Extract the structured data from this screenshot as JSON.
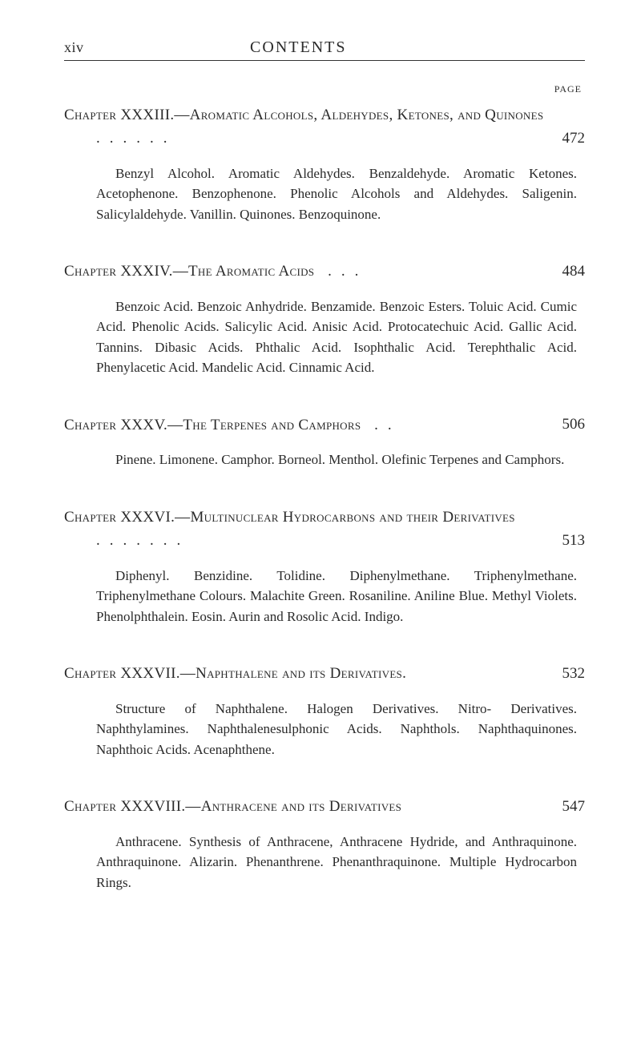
{
  "header": {
    "roman": "xiv",
    "title": "CONTENTS",
    "pageLabel": "PAGE"
  },
  "chapters": [
    {
      "heading": "Chapter XXXIII.—Aromatic Alcohols, Aldehydes, Ketones, and Quinones",
      "dots": "......",
      "page": "472",
      "body": "Benzyl Alcohol. Aromatic Aldehydes. Benzaldehyde. Aromatic Ketones. Acetophenone. Benzophenone. Phenolic Alcohols and Aldehydes. Saligenin. Salicylaldehyde. Vanillin. Quinones. Benzoquinone."
    },
    {
      "heading": "Chapter XXXIV.—The Aromatic Acids",
      "dots": "...",
      "page": "484",
      "body": "Benzoic Acid. Benzoic Anhydride. Benzamide. Benzoic Esters. Toluic Acid. Cumic Acid. Phenolic Acids. Salicylic Acid. Anisic Acid. Protocatechuic Acid. Gallic Acid. Tannins. Dibasic Acids. Phthalic Acid. Isophthalic Acid. Terephthalic Acid. Phenylacetic Acid. Mandelic Acid. Cinnamic Acid."
    },
    {
      "heading": "Chapter XXXV.—The Terpenes and Camphors",
      "dots": "..",
      "page": "506",
      "body": "Pinene. Limonene. Camphor. Borneol. Menthol. Olefinic Terpenes and Camphors."
    },
    {
      "heading": "Chapter XXXVI.—Multinuclear Hydrocarbons and their Derivatives",
      "dots": ".......",
      "page": "513",
      "body": "Diphenyl. Benzidine. Tolidine. Diphenylmethane. Triphenylmethane. Triphenylmethane Colours. Malachite Green. Rosaniline. Aniline Blue. Methyl Violets. Phenolphthalein. Eosin. Aurin and Rosolic Acid. Indigo."
    },
    {
      "heading": "Chapter XXXVII.—Naphthalene and its Derivatives.",
      "dots": "",
      "page": "532",
      "body": "Structure of Naphthalene. Halogen Derivatives. Nitro- Derivatives. Naphthylamines. Naphthalenesulphonic Acids. Naphthols. Naphthaquinones. Naphthoic Acids. Acenaphthene."
    },
    {
      "heading": "Chapter XXXVIII.—Anthracene and its Derivatives",
      "dots": "",
      "page": "547",
      "body": "Anthracene. Synthesis of Anthracene, Anthracene Hydride, and Anthraquinone. Anthraquinone. Alizarin. Phenanthrene. Phenanthraquinone. Multiple Hydrocarbon Rings."
    }
  ]
}
